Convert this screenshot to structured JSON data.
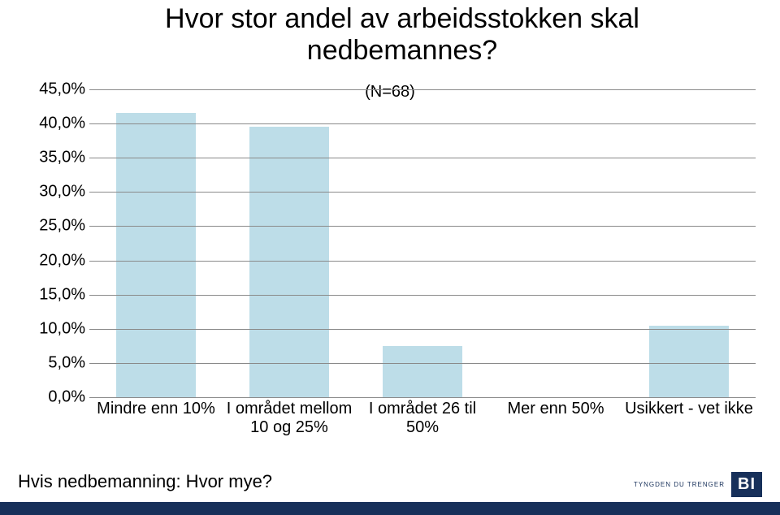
{
  "title": {
    "text": "Hvor stor andel av arbeidsstokken skal nedbemannes?",
    "fontsize": 34,
    "color": "#000000"
  },
  "chart": {
    "type": "bar",
    "subtitle": "(N=68)",
    "subtitle_fontsize": 20,
    "y": {
      "min": 0,
      "max": 45,
      "step": 5,
      "tick_fontsize": 20,
      "tick_format_suffix": "%",
      "tick_format_decimal": ",0",
      "grid_color": "#8a8a8a"
    },
    "categories": [
      {
        "label": "Mindre enn 10%",
        "value": 41.5
      },
      {
        "label": "I området mellom 10 og 25%",
        "value": 39.5
      },
      {
        "label": "I området 26 til 50%",
        "value": 7.5
      },
      {
        "label": "Mer enn 50%",
        "value": 0
      },
      {
        "label": "Usikkert - vet ikke",
        "value": 10.5
      }
    ],
    "bar_color": "#bddde8",
    "bar_width_ratio": 0.6,
    "xlabel_fontsize": 20,
    "background_color": "#ffffff"
  },
  "footer": {
    "text": "Hvis nedbemanning: Hvor mye?",
    "fontsize": 22,
    "color": "#000000"
  },
  "brand": {
    "tagline": "TYNGDEN DU TRENGER",
    "tagline_fontsize": 8,
    "tagline_color": "#17305a",
    "logo_text": "BI",
    "logo_bg": "#17305a",
    "logo_fg": "#ffffff",
    "logo_fontsize": 20,
    "bar_color": "#17305a"
  }
}
